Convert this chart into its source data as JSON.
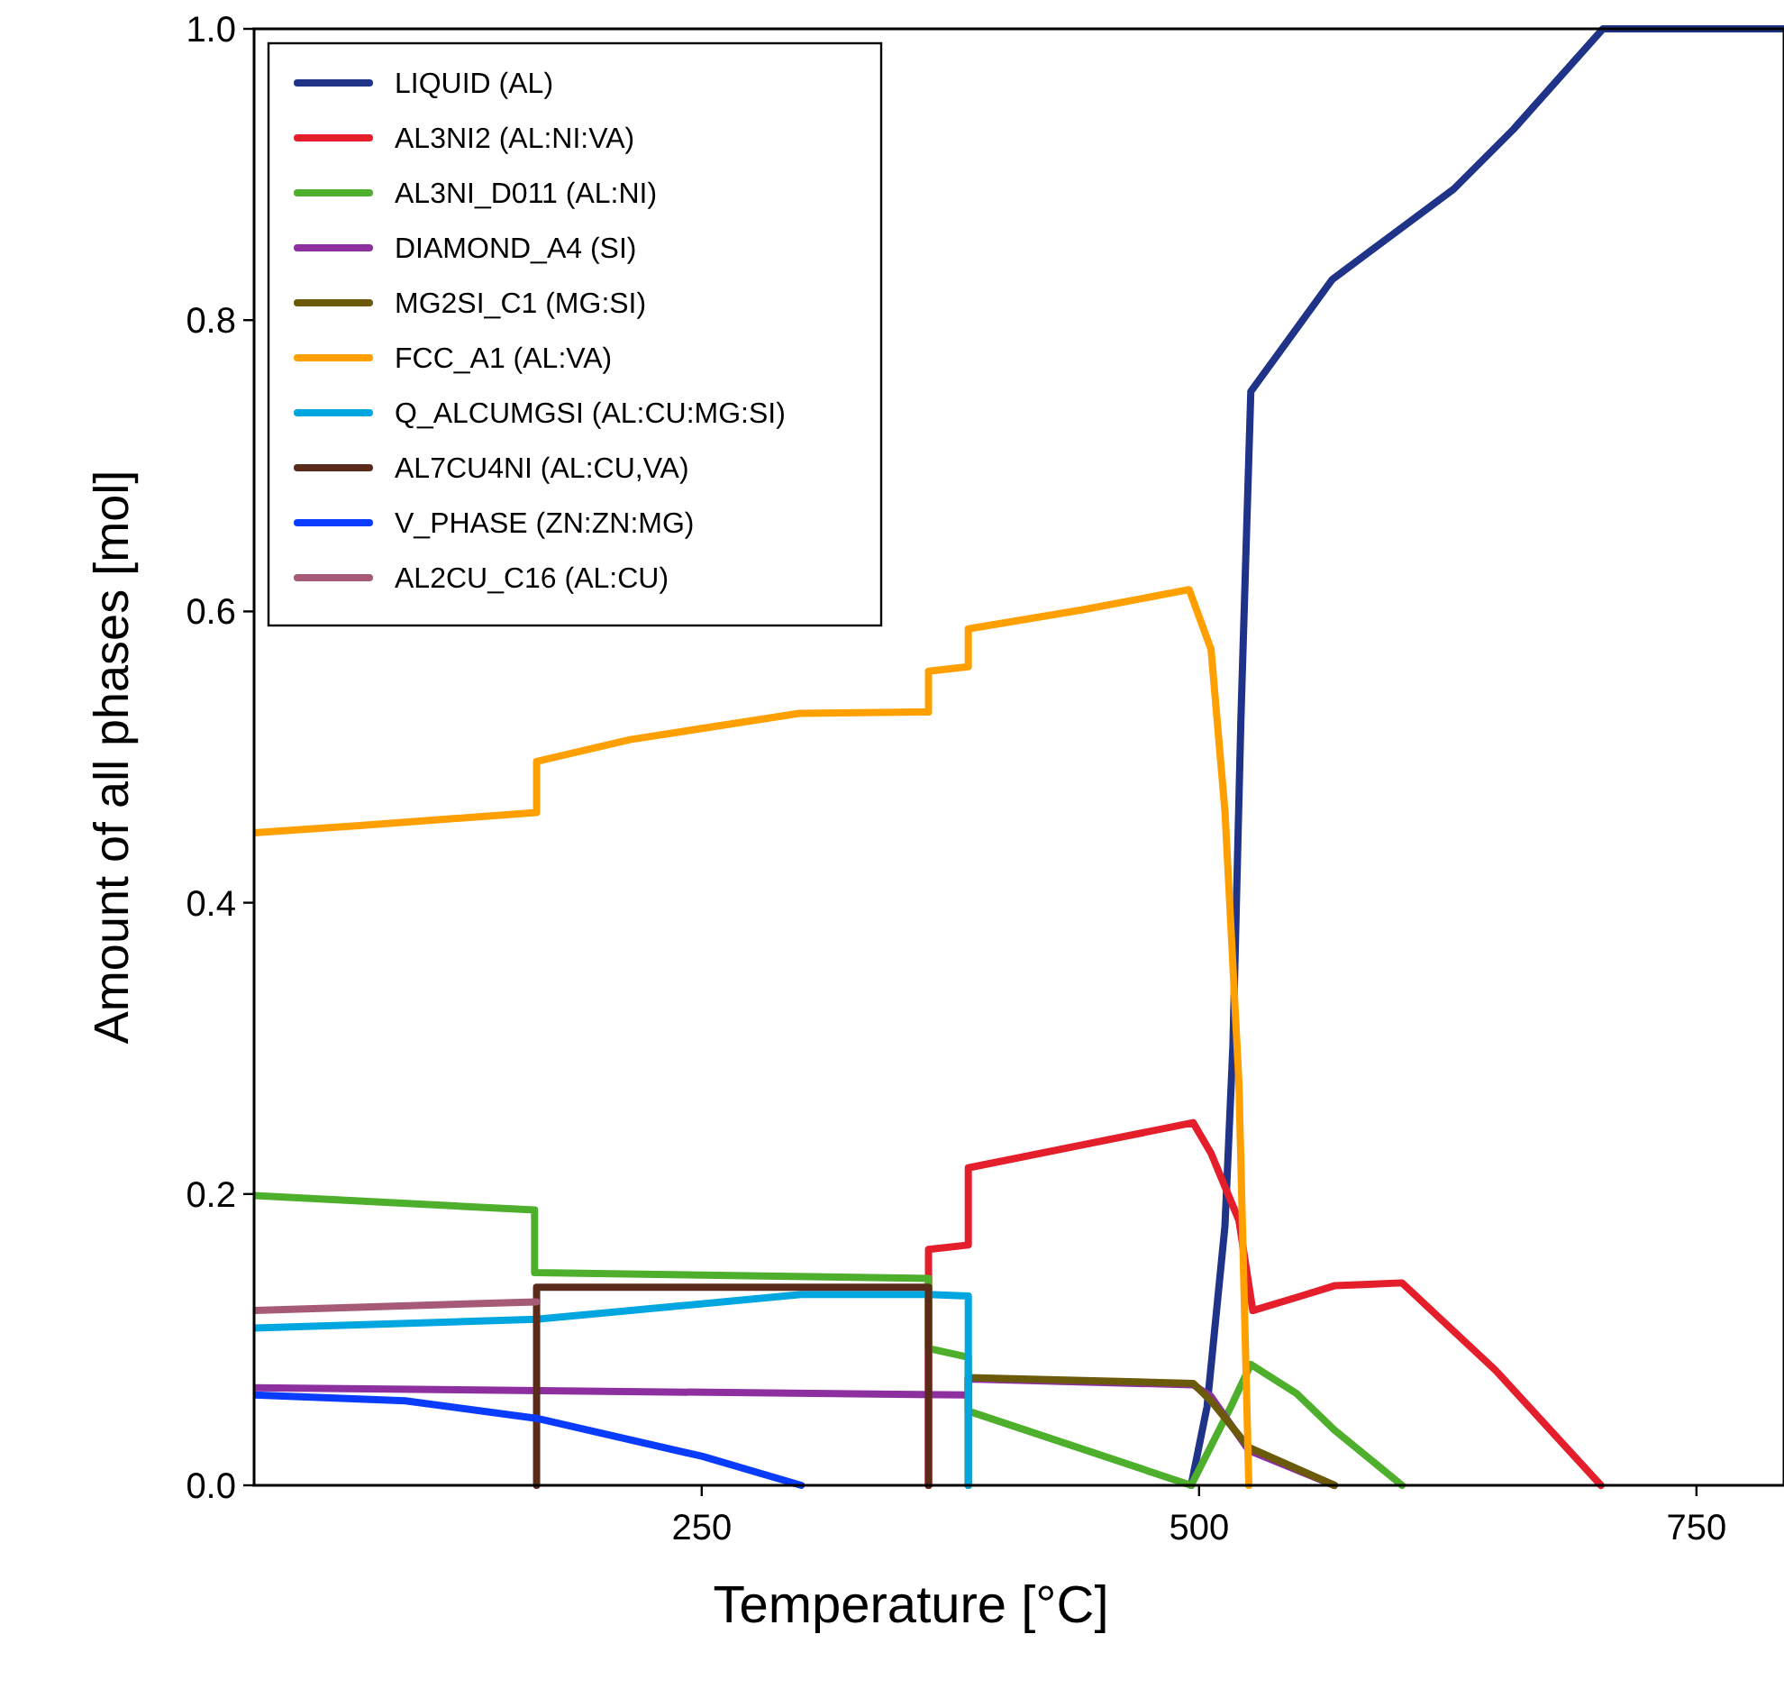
{
  "chart_data": {
    "type": "line",
    "xlabel": "Temperature [°C]",
    "ylabel": "Amount of all phases [mol]",
    "xlim": [
      25,
      794
    ],
    "xticks": [
      250,
      500,
      750
    ],
    "ylim": [
      0,
      1
    ],
    "yticks": [
      {
        "value": 0,
        "label": "0.0"
      },
      {
        "value": 0.2,
        "label": "0.2"
      },
      {
        "value": 0.4,
        "label": "0.4"
      },
      {
        "value": 0.6,
        "label": "0.6"
      },
      {
        "value": 0.8,
        "label": "0.8"
      },
      {
        "value": 1,
        "label": "1.0"
      }
    ],
    "legend": "top left",
    "line_style": "solid",
    "marker": "none",
    "series": [
      {
        "name": "LIQUID  (AL)",
        "color": "#1f3388",
        "x": [
          496,
          504,
          513,
          517,
          521,
          526,
          567,
          628,
          658,
          703,
          794
        ],
        "values": [
          0,
          0.054,
          0.178,
          0.302,
          0.525,
          0.751,
          0.828,
          0.89,
          0.931,
          1,
          1
        ]
      },
      {
        "name": "AL3NI2  (AL:NI:VA)",
        "color": "#e41e2b",
        "x": [
          364,
          364,
          384,
          384,
          497,
          506,
          520,
          527,
          549,
          568,
          602,
          649,
          702
        ],
        "values": [
          0,
          0.162,
          0.165,
          0.218,
          0.249,
          0.228,
          0.182,
          0.12,
          0.129,
          0.137,
          0.139,
          0.079,
          0
        ]
      },
      {
        "name": "AL3NI_D011  (AL:NI)",
        "color": "#4daf2c",
        "x": [
          25,
          166,
          166,
          364,
          364,
          384,
          384,
          496,
          516,
          526,
          549,
          568,
          602
        ],
        "values": [
          0.199,
          0.189,
          0.146,
          0.142,
          0.094,
          0.088,
          0.051,
          0,
          0.054,
          0.083,
          0.063,
          0.038,
          0
        ]
      },
      {
        "name": "DIAMOND_A4  (SI)",
        "color": "#8e2fa0",
        "x": [
          25,
          384,
          384,
          497,
          506,
          525,
          568
        ],
        "values": [
          0.067,
          0.062,
          0.073,
          0.069,
          0.061,
          0.024,
          0
        ]
      },
      {
        "name": "MG2SI_C1  (MG:SI)",
        "color": "#6b5a0a",
        "x": [
          384,
          384,
          497,
          506,
          525,
          568
        ],
        "values": [
          0,
          0.074,
          0.07,
          0.058,
          0.026,
          0
        ]
      },
      {
        "name": "FCC_A1  (AL:VA)",
        "color": "#ff9f00",
        "x": [
          25,
          78,
          167,
          167,
          214,
          299,
          364,
          364,
          384,
          384,
          441,
          495,
          506,
          513,
          520,
          525
        ],
        "values": [
          0.448,
          0.453,
          0.462,
          0.497,
          0.512,
          0.53,
          0.531,
          0.559,
          0.562,
          0.588,
          0.601,
          0.615,
          0.574,
          0.463,
          0.277,
          0
        ]
      },
      {
        "name": "Q_ALCUMGSI  (AL:CU:MG:SI)",
        "color": "#00a6e0",
        "x": [
          25,
          167,
          300,
          364,
          384,
          384
        ],
        "values": [
          0.108,
          0.114,
          0.131,
          0.131,
          0.13,
          0
        ]
      },
      {
        "name": "AL7CU4NI  (AL:CU,VA)",
        "color": "#5a2a1a",
        "x": [
          167,
          167,
          364,
          364
        ],
        "values": [
          0,
          0.136,
          0.136,
          0
        ]
      },
      {
        "name": "V_PHASE  (ZN:ZN:MG)",
        "color": "#0a3cff",
        "x": [
          25,
          101,
          167,
          250,
          300
        ],
        "values": [
          0.062,
          0.058,
          0.046,
          0.02,
          0
        ]
      },
      {
        "name": "AL2CU_C16  (AL:CU)",
        "color": "#a65a78",
        "x": [
          25,
          167
        ],
        "values": [
          0.12,
          0.126
        ]
      }
    ]
  }
}
